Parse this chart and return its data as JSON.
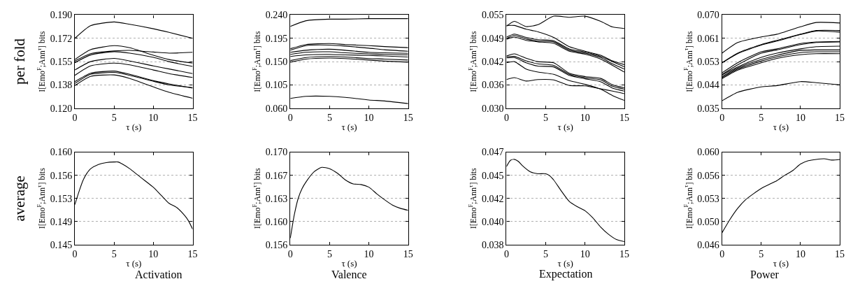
{
  "chart_data": [
    {
      "type": "line",
      "x": [
        0,
        2,
        5,
        7,
        10,
        12,
        15
      ],
      "xlim": [
        0,
        15
      ],
      "xticks": [
        0,
        5,
        10,
        15
      ],
      "ylim": [
        0.12,
        0.19
      ],
      "yticks": [
        {
          "value": 0.12,
          "label": "0.120"
        },
        {
          "value": 0.1375,
          "label": "0.138"
        },
        0.155,
        {
          "value": 0.1725,
          "label": "0.172"
        },
        {
          "value": 0.19,
          "label": "0.190"
        }
      ],
      "xlabel": "τ (s)",
      "ylabel": "I[Emo$^{F}$;Ann$^{τ}$] bits",
      "grid": "y",
      "annotations": [
        "per fold"
      ],
      "series": [
        {
          "color": "#000000",
          "values": [
            0.1725,
            0.182,
            0.1848,
            0.183,
            0.1797,
            0.177,
            0.1725
          ]
        },
        {
          "color": "#000000",
          "values": [
            0.1566,
            0.164,
            0.167,
            0.1654,
            0.1598,
            0.1566,
            0.1539
          ]
        },
        {
          "color": "#000000",
          "values": [
            0.1555,
            0.161,
            0.163,
            0.1635,
            0.1622,
            0.1614,
            0.162
          ]
        },
        {
          "color": "#000000",
          "values": [
            0.1542,
            0.16,
            0.1625,
            0.1614,
            0.1582,
            0.155,
            0.1514
          ]
        },
        {
          "color": "#000000",
          "values": [
            0.1487,
            0.155,
            0.1574,
            0.1555,
            0.1518,
            0.1495,
            0.146
          ]
        },
        {
          "color": "#000000",
          "values": [
            0.1447,
            0.1518,
            0.1539,
            0.1526,
            0.1487,
            0.146,
            0.1431
          ]
        },
        {
          "color": "#000000",
          "values": [
            0.14,
            0.1463,
            0.1479,
            0.1455,
            0.1407,
            0.1383,
            0.1351
          ]
        },
        {
          "color": "#000000",
          "values": [
            0.1386,
            0.1455,
            0.1469,
            0.1447,
            0.1402,
            0.1375,
            0.1355
          ]
        },
        {
          "color": "#000000",
          "values": [
            0.137,
            0.1439,
            0.145,
            0.1423,
            0.136,
            0.132,
            0.1275
          ]
        }
      ]
    },
    {
      "type": "line",
      "x": [
        0,
        2,
        5,
        7,
        10,
        12,
        15
      ],
      "xlim": [
        0,
        15
      ],
      "xticks": [
        0,
        5,
        10,
        15
      ],
      "ylim": [
        0.06,
        0.24
      ],
      "yticks": [
        {
          "value": 0.06,
          "label": "0.060"
        },
        0.105,
        {
          "value": 0.15,
          "label": "0.150"
        },
        0.195,
        {
          "value": 0.24,
          "label": "0.240"
        }
      ],
      "xlabel": "τ (s)",
      "ylabel": "I[Emo$^{F}$;Ann$^{τ}$] bits",
      "grid": "y",
      "series": [
        {
          "color": "#000000",
          "values": [
            0.218,
            0.229,
            0.232,
            0.232,
            0.233,
            0.233,
            0.233
          ]
        },
        {
          "color": "#000000",
          "values": [
            0.175,
            0.183,
            0.185,
            0.183,
            0.181,
            0.179,
            0.177
          ]
        },
        {
          "color": "#000000",
          "values": [
            0.172,
            0.181,
            0.182,
            0.18,
            0.176,
            0.173,
            0.17
          ]
        },
        {
          "color": "#000000",
          "values": [
            0.168,
            0.172,
            0.174,
            0.172,
            0.168,
            0.167,
            0.166
          ]
        },
        {
          "color": "#000000",
          "values": [
            0.164,
            0.168,
            0.169,
            0.167,
            0.165,
            0.164,
            0.163
          ]
        },
        {
          "color": "#000000",
          "values": [
            0.16,
            0.163,
            0.164,
            0.163,
            0.162,
            0.161,
            0.159
          ]
        },
        {
          "color": "#000000",
          "values": [
            0.152,
            0.158,
            0.16,
            0.159,
            0.156,
            0.155,
            0.153
          ]
        },
        {
          "color": "#000000",
          "values": [
            0.149,
            0.155,
            0.157,
            0.156,
            0.153,
            0.151,
            0.149
          ]
        },
        {
          "color": "#000000",
          "values": [
            0.079,
            0.083,
            0.083,
            0.081,
            0.076,
            0.074,
            0.069
          ]
        }
      ]
    },
    {
      "type": "line",
      "x": [
        0,
        1,
        2.5,
        4,
        6,
        8,
        10,
        12,
        13.5,
        15
      ],
      "xlim": [
        0,
        15
      ],
      "xticks": [
        0,
        5,
        10,
        15
      ],
      "ylim": [
        0.03,
        0.055
      ],
      "yticks": [
        {
          "value": 0.03,
          "label": "0.030"
        },
        {
          "value": 0.03625,
          "label": "0.036"
        },
        {
          "value": 0.0425,
          "label": "0.042"
        },
        {
          "value": 0.04875,
          "label": "0.049"
        },
        {
          "value": 0.055,
          "label": "0.055"
        }
      ],
      "xlabel": "τ (s)",
      "ylabel": "I[Emo$^{F}$;Ann$^{τ}$] bits",
      "grid": "y",
      "series": [
        {
          "color": "#000000",
          "values": [
            0.052,
            0.0533,
            0.0519,
            0.0524,
            0.0547,
            0.0544,
            0.0547,
            0.0533,
            0.0518,
            0.0514
          ]
        },
        {
          "color": "#000000",
          "values": [
            0.0522,
            0.0522,
            0.0512,
            0.0505,
            0.049,
            0.0465,
            0.0453,
            0.0442,
            0.0427,
            0.0417
          ]
        },
        {
          "color": "#000000",
          "values": [
            0.0491,
            0.0499,
            0.049,
            0.0484,
            0.0481,
            0.0459,
            0.0451,
            0.0439,
            0.0425,
            0.0411
          ]
        },
        {
          "color": "#000000",
          "values": [
            0.0487,
            0.0495,
            0.0486,
            0.048,
            0.0478,
            0.0456,
            0.0448,
            0.0436,
            0.0419,
            0.0405
          ]
        },
        {
          "color": "#000000",
          "values": [
            0.0485,
            0.0491,
            0.0482,
            0.0478,
            0.0474,
            0.0453,
            0.0445,
            0.0432,
            0.0415,
            0.0397
          ]
        },
        {
          "color": "#000000",
          "values": [
            0.044,
            0.0446,
            0.0434,
            0.0425,
            0.0422,
            0.0394,
            0.0385,
            0.038,
            0.0363,
            0.0355
          ]
        },
        {
          "color": "#000000",
          "values": [
            0.0438,
            0.0439,
            0.0427,
            0.0419,
            0.0415,
            0.0391,
            0.0382,
            0.0376,
            0.0359,
            0.0351
          ]
        },
        {
          "color": "#000000",
          "values": [
            0.0435,
            0.0436,
            0.0422,
            0.0413,
            0.0411,
            0.0388,
            0.0379,
            0.0371,
            0.0354,
            0.0346
          ]
        },
        {
          "color": "#000000",
          "values": [
            0.0422,
            0.0425,
            0.0405,
            0.0397,
            0.0391,
            0.0374,
            0.0364,
            0.0351,
            0.0334,
            0.0321
          ]
        },
        {
          "color": "#000000",
          "values": [
            0.0377,
            0.0382,
            0.0373,
            0.0377,
            0.0376,
            0.0361,
            0.036,
            0.0352,
            0.0346,
            0.0339
          ]
        }
      ]
    },
    {
      "type": "line",
      "x": [
        0,
        2,
        5,
        7,
        10,
        12,
        15
      ],
      "xlim": [
        0,
        15
      ],
      "xticks": [
        0,
        5,
        10,
        15
      ],
      "ylim": [
        0.035,
        0.07
      ],
      "yticks": [
        {
          "value": 0.035,
          "label": "0.035"
        },
        {
          "value": 0.04375,
          "label": "0.044"
        },
        {
          "value": 0.0525,
          "label": "0.053"
        },
        {
          "value": 0.06125,
          "label": "0.061"
        },
        {
          "value": 0.07,
          "label": "0.070"
        }
      ],
      "xlabel": "τ (s)",
      "ylabel": "I[Emo$^{F}$;Ann$^{τ}$] bits",
      "grid": "y",
      "series": [
        {
          "color": "#000000",
          "values": [
            0.0557,
            0.0597,
            0.0618,
            0.0628,
            0.0656,
            0.0672,
            0.067
          ]
        },
        {
          "color": "#000000",
          "values": [
            0.0521,
            0.0557,
            0.0589,
            0.0605,
            0.0628,
            0.0642,
            0.0642
          ]
        },
        {
          "color": "#000000",
          "values": [
            0.052,
            0.0555,
            0.0587,
            0.0602,
            0.0627,
            0.064,
            0.0636
          ]
        },
        {
          "color": "#000000",
          "values": [
            0.0483,
            0.0521,
            0.0562,
            0.0573,
            0.0593,
            0.0599,
            0.0601
          ]
        },
        {
          "color": "#000000",
          "values": [
            0.0477,
            0.0513,
            0.0557,
            0.0569,
            0.0589,
            0.0597,
            0.0599
          ]
        },
        {
          "color": "#000000",
          "values": [
            0.0475,
            0.0505,
            0.0541,
            0.0557,
            0.0573,
            0.0581,
            0.0583
          ]
        },
        {
          "color": "#000000",
          "values": [
            0.0469,
            0.0501,
            0.0533,
            0.0549,
            0.0567,
            0.0569,
            0.0569
          ]
        },
        {
          "color": "#000000",
          "values": [
            0.0465,
            0.0497,
            0.0527,
            0.0543,
            0.0559,
            0.0562,
            0.0562
          ]
        },
        {
          "color": "#000000",
          "values": [
            0.0461,
            0.0493,
            0.0521,
            0.0537,
            0.0551,
            0.0555,
            0.0555
          ]
        },
        {
          "color": "#000000",
          "values": [
            0.0378,
            0.041,
            0.043,
            0.0435,
            0.045,
            0.0446,
            0.0438
          ]
        }
      ]
    },
    {
      "type": "line",
      "x": [
        0,
        0.5,
        1,
        1.5,
        2,
        3,
        4,
        5,
        5.5,
        6,
        7,
        8,
        9,
        10,
        11,
        12,
        13,
        14,
        14.5,
        15
      ],
      "xlim": [
        0,
        15
      ],
      "xticks": [
        0,
        5,
        10,
        15
      ],
      "ylim": [
        0.145,
        0.16
      ],
      "yticks": [
        {
          "value": 0.145,
          "label": "0.145"
        },
        {
          "value": 0.14875,
          "label": "0.149"
        },
        {
          "value": 0.1525,
          "label": "0.153"
        },
        {
          "value": 0.15625,
          "label": "0.156"
        },
        {
          "value": 0.16,
          "label": "0.160"
        }
      ],
      "xlabel": "τ (s)",
      "ylabel": "I[Emo$^{F}$;Ann$^{τ}$] bits",
      "grid": "y",
      "annotations": [
        "average",
        "Activation"
      ],
      "series": [
        {
          "color": "#000000",
          "values": [
            0.1515,
            0.1535,
            0.1553,
            0.1565,
            0.1573,
            0.158,
            0.1583,
            0.1584,
            0.1584,
            0.1581,
            0.1573,
            0.1563,
            0.1553,
            0.1543,
            0.153,
            0.1517,
            0.151,
            0.1497,
            0.1488,
            0.1475
          ]
        }
      ]
    },
    {
      "type": "line",
      "x": [
        0,
        0.5,
        1,
        1.5,
        2,
        3,
        4,
        5,
        6,
        7,
        8,
        9,
        10,
        11,
        12,
        13,
        14,
        15
      ],
      "xlim": [
        0,
        15
      ],
      "xticks": [
        0,
        5,
        10,
        15
      ],
      "ylim": [
        0.156,
        0.17
      ],
      "yticks": [
        {
          "value": 0.156,
          "label": "0.156"
        },
        {
          "value": 0.1595,
          "label": "0.160"
        },
        0.163,
        {
          "value": 0.1665,
          "label": "0.167"
        },
        {
          "value": 0.17,
          "label": "0.170"
        }
      ],
      "xlabel": "τ (s)",
      "ylabel": "I[Emo$^{F}$;Ann$^{τ}$] bits",
      "grid": "y",
      "annotations": [
        "Valence"
      ],
      "series": [
        {
          "color": "#000000",
          "values": [
            0.157,
            0.1605,
            0.163,
            0.1645,
            0.1655,
            0.167,
            0.1677,
            0.1675,
            0.1668,
            0.1658,
            0.1652,
            0.1651,
            0.1647,
            0.1637,
            0.1628,
            0.162,
            0.1615,
            0.1612
          ]
        }
      ]
    },
    {
      "type": "line",
      "x": [
        0,
        0.5,
        1,
        1.5,
        2,
        3,
        4,
        5,
        5.5,
        6,
        7,
        8,
        9,
        10,
        11,
        12,
        13,
        14,
        15
      ],
      "xlim": [
        0,
        15
      ],
      "xticks": [
        0,
        5,
        10,
        15
      ],
      "ylim": [
        0.038,
        0.047
      ],
      "yticks": [
        {
          "value": 0.038,
          "label": "0.038"
        },
        {
          "value": 0.04025,
          "label": "0.040"
        },
        {
          "value": 0.0425,
          "label": "0.042"
        },
        {
          "value": 0.04475,
          "label": "0.045"
        },
        {
          "value": 0.047,
          "label": "0.047"
        }
      ],
      "xlabel": "τ (s)",
      "ylabel": "I[Emo$^{F}$;Ann$^{τ}$] bits",
      "grid": "y",
      "annotations": [
        "Expectation"
      ],
      "series": [
        {
          "color": "#000000",
          "values": [
            0.0456,
            0.0462,
            0.0463,
            0.0461,
            0.0457,
            0.0451,
            0.0449,
            0.0449,
            0.0447,
            0.0443,
            0.0432,
            0.0422,
            0.0417,
            0.0413,
            0.0406,
            0.0397,
            0.039,
            0.0385,
            0.0383
          ]
        }
      ]
    },
    {
      "type": "line",
      "x": [
        0,
        1,
        2,
        3,
        4,
        5,
        6,
        7,
        8,
        9,
        10,
        11,
        12,
        13,
        14,
        15
      ],
      "xlim": [
        0,
        15
      ],
      "xticks": [
        0,
        5,
        10,
        15
      ],
      "ylim": [
        0.046,
        0.06
      ],
      "yticks": [
        {
          "value": 0.046,
          "label": "0.046"
        },
        {
          "value": 0.0495,
          "label": "0.050"
        },
        0.053,
        {
          "value": 0.0565,
          "label": "0.056"
        },
        {
          "value": 0.06,
          "label": "0.060"
        }
      ],
      "xlabel": "τ (s)",
      "ylabel": "I[Emo$^{F}$;Ann$^{τ}$] bits",
      "grid": "y",
      "annotations": [
        "Power"
      ],
      "series": [
        {
          "color": "#000000",
          "values": [
            0.0478,
            0.0498,
            0.0515,
            0.0528,
            0.0537,
            0.0545,
            0.0551,
            0.0557,
            0.0565,
            0.0572,
            0.0582,
            0.0587,
            0.0589,
            0.059,
            0.0588,
            0.0589
          ]
        }
      ]
    }
  ]
}
